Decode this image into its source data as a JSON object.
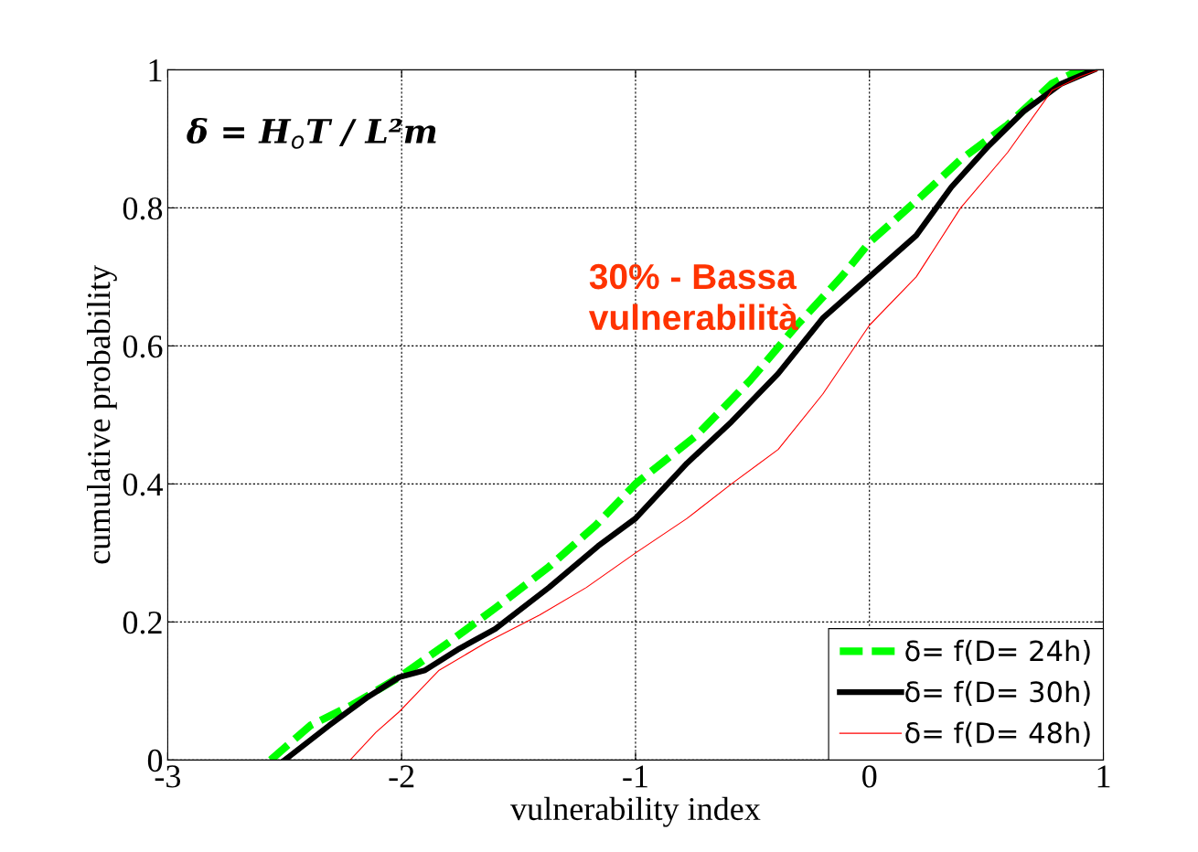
{
  "chart_data": {
    "type": "line",
    "xlabel": "vulnerability index",
    "ylabel": "cumulative probability",
    "xlim": [
      -3,
      1
    ],
    "xticks": [
      {
        "value": -3,
        "label": "-3"
      },
      {
        "value": -2,
        "label": "-2"
      },
      {
        "value": -1,
        "label": "-1"
      },
      0,
      1
    ],
    "ylim": [
      0,
      1
    ],
    "yticks": [
      0,
      0.2,
      0.4,
      0.6,
      0.8,
      1
    ],
    "grid": true,
    "legend": "bottom right",
    "marker": "none",
    "annotations": [
      "δ = H$_{o}$T / L²m",
      "30% - Bassa\nvulnerabilità"
    ],
    "series": [
      {
        "name": "δ= f(D= 24h)",
        "color": "#00ff00",
        "line_style": "dashed",
        "x": [
          -2.56,
          -2.39,
          -2.21,
          -2.01,
          -1.8,
          -1.6,
          -1.37,
          -1.17,
          -1.0,
          -0.74,
          -0.51,
          -0.31,
          -0.12,
          0.0,
          0.2,
          0.39,
          0.59,
          0.78,
          0.9,
          0.95
        ],
        "values": [
          0,
          0.05,
          0.08,
          0.12,
          0.17,
          0.22,
          0.28,
          0.34,
          0.4,
          0.47,
          0.55,
          0.63,
          0.7,
          0.75,
          0.81,
          0.87,
          0.92,
          0.98,
          1.0,
          1.0
        ]
      },
      {
        "name": "δ= f(D= 30h)",
        "color": "#000000",
        "line_style": "solid",
        "x": [
          -2.5,
          -2.31,
          -2.15,
          -2.01,
          -1.9,
          -1.76,
          -1.6,
          -1.37,
          -1.16,
          -1.0,
          -0.78,
          -0.59,
          -0.39,
          -0.2,
          0.0,
          0.2,
          0.35,
          0.51,
          0.66,
          0.82,
          0.96
        ],
        "values": [
          0,
          0.05,
          0.09,
          0.12,
          0.13,
          0.16,
          0.19,
          0.25,
          0.31,
          0.35,
          0.43,
          0.49,
          0.56,
          0.64,
          0.7,
          0.76,
          0.83,
          0.89,
          0.94,
          0.98,
          1.0
        ]
      },
      {
        "name": "δ= f(D= 48h)",
        "color": "#ff0000",
        "line_style": "solid",
        "x": [
          -2.22,
          -2.11,
          -2.01,
          -1.84,
          -1.64,
          -1.41,
          -1.21,
          -1.0,
          -0.78,
          -0.59,
          -0.39,
          -0.2,
          0.0,
          0.2,
          0.39,
          0.59,
          0.78,
          0.9,
          0.98
        ],
        "values": [
          0,
          0.04,
          0.07,
          0.13,
          0.17,
          0.21,
          0.25,
          0.3,
          0.35,
          0.4,
          0.45,
          0.53,
          0.63,
          0.7,
          0.8,
          0.88,
          0.97,
          0.99,
          1.0
        ]
      }
    ]
  }
}
